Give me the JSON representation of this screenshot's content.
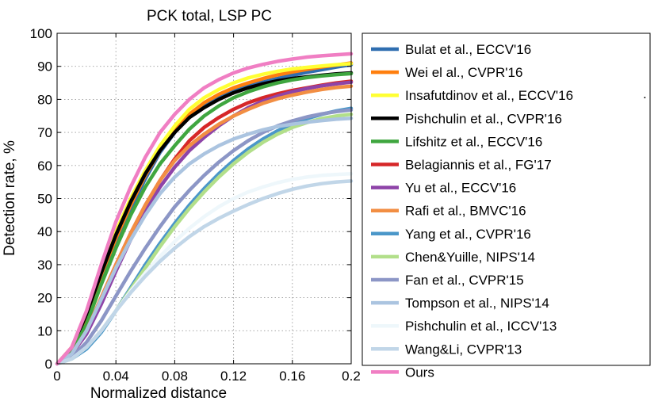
{
  "chart_data": {
    "type": "line",
    "title": "PCK total, LSP PC",
    "xlabel": "Normalized distance",
    "ylabel": "Detection rate, %",
    "xlim": [
      0,
      0.2
    ],
    "ylim": [
      0,
      100
    ],
    "xticks": [
      0,
      0.04,
      0.08,
      0.12,
      0.16,
      0.2
    ],
    "xtick_labels": [
      "0",
      "0.04",
      "0.08",
      "0.12",
      "0.16",
      "0.2"
    ],
    "yticks": [
      0,
      10,
      20,
      30,
      40,
      50,
      60,
      70,
      80,
      90,
      100
    ],
    "ytick_labels": [
      "0",
      "10",
      "20",
      "30",
      "40",
      "50",
      "60",
      "70",
      "80",
      "90",
      "100"
    ],
    "grid": true,
    "legend_position": "outside-right",
    "legend_stray_mark": ".",
    "x": [
      0,
      0.01,
      0.02,
      0.03,
      0.04,
      0.05,
      0.06,
      0.07,
      0.08,
      0.09,
      0.1,
      0.11,
      0.12,
      0.13,
      0.14,
      0.15,
      0.16,
      0.17,
      0.18,
      0.19,
      0.2
    ],
    "series": [
      {
        "name": "Bulat et al., ECCV'16",
        "color": "#2f6eb0",
        "values": [
          0,
          4,
          13,
          26,
          37,
          47,
          56,
          64,
          70,
          75,
          78,
          80.5,
          82.5,
          84,
          85.2,
          86.3,
          87.3,
          88.2,
          89,
          89.8,
          90.5
        ]
      },
      {
        "name": "Wei el al., CVPR'16",
        "color": "#ff7f0e",
        "values": [
          0,
          4,
          14,
          27,
          38,
          48,
          57,
          64.5,
          70.5,
          75.5,
          79,
          81.5,
          83.5,
          85,
          86.3,
          87.4,
          88.3,
          89.1,
          89.8,
          90.4,
          91
        ]
      },
      {
        "name": "Insafutdinov et al., ECCV'16",
        "color": "#ffff33",
        "values": [
          0,
          5,
          15,
          28,
          40,
          50,
          58.5,
          66,
          72,
          77,
          80.5,
          83,
          85,
          86.5,
          87.6,
          88.5,
          89.2,
          89.7,
          90.1,
          90.5,
          90.8
        ]
      },
      {
        "name": "Pishchulin et al., CVPR'16",
        "color": "#000000",
        "values": [
          0,
          4.5,
          15,
          27.5,
          39,
          49,
          57.5,
          64.5,
          70,
          74.5,
          77.5,
          80,
          82,
          83.5,
          84.7,
          85.6,
          86.3,
          86.8,
          87.3,
          87.7,
          88
        ]
      },
      {
        "name": "Lifshitz et al., ECCV'16",
        "color": "#3fa63f",
        "values": [
          0,
          3.5,
          12,
          24,
          35,
          45,
          53.5,
          60.5,
          66,
          71,
          75,
          78,
          80.5,
          82.3,
          83.8,
          85,
          85.9,
          86.6,
          87.1,
          87.5,
          87.8
        ]
      },
      {
        "name": "Belagiannis et al., FG'17",
        "color": "#d62728",
        "values": [
          0,
          3,
          10,
          20,
          30,
          39.5,
          48,
          55.5,
          62,
          67.5,
          71.5,
          74.5,
          77,
          79,
          80.5,
          81.7,
          82.7,
          83.5,
          84.3,
          85,
          85.5
        ]
      },
      {
        "name": "Yu et al., ECCV'16",
        "color": "#8e44a8",
        "values": [
          0,
          3,
          9,
          18,
          28,
          37.5,
          46,
          53.5,
          59.5,
          64.5,
          68.5,
          72,
          75,
          77.5,
          79.5,
          81,
          82.3,
          83.3,
          84.1,
          84.7,
          85.2
        ]
      },
      {
        "name": "Rafi et al., BMVC'16",
        "color": "#f28e43",
        "values": [
          0,
          3,
          10,
          20,
          30,
          39.5,
          48,
          55.5,
          61.5,
          66,
          69.5,
          72.5,
          75,
          77,
          78.8,
          80.2,
          81.3,
          82.2,
          83,
          83.6,
          84
        ]
      },
      {
        "name": "Yang et al., CVPR'16",
        "color": "#4b97c9",
        "values": [
          0,
          1.5,
          4.5,
          9.5,
          16,
          23,
          30,
          36.5,
          42.5,
          48,
          53,
          57.5,
          61.5,
          65,
          68,
          70.5,
          72.5,
          74.2,
          75.5,
          76.5,
          77.3
        ]
      },
      {
        "name": "Chen&Yuille, NIPS'14",
        "color": "#b2df8a",
        "values": [
          0,
          1.5,
          5,
          10,
          16,
          22.5,
          29,
          35.5,
          41.5,
          47,
          52,
          56.5,
          60.5,
          64,
          67,
          69.5,
          71.5,
          73,
          74.2,
          75,
          75.5
        ]
      },
      {
        "name": "Fan et al., CVPR'15",
        "color": "#8c96c6",
        "values": [
          0,
          2,
          6.5,
          13,
          20.5,
          28,
          35,
          41.5,
          47.5,
          52.5,
          57,
          61,
          64.5,
          67.5,
          70,
          72,
          73.5,
          74.7,
          75.6,
          76.3,
          76.8
        ]
      },
      {
        "name": "Tompson et al., NIPS'14",
        "color": "#abc4e0",
        "values": [
          0,
          3,
          10,
          19.5,
          29,
          37.5,
          45,
          51.5,
          56.5,
          60.5,
          63.5,
          66,
          68,
          69.5,
          70.8,
          71.8,
          72.5,
          73.1,
          73.6,
          74,
          74.3
        ]
      },
      {
        "name": "Pishchulin et al., ICCV'13",
        "color": "#eef7fb",
        "values": [
          0,
          1.5,
          5,
          10,
          16,
          22,
          27.5,
          32.5,
          37,
          41,
          44.5,
          47.5,
          50,
          52,
          53.5,
          54.8,
          55.8,
          56.5,
          57,
          57.3,
          57.5
        ]
      },
      {
        "name": "Wang&Li, CVPR'13",
        "color": "#c1d6e8",
        "values": [
          0,
          1.5,
          5,
          10,
          16,
          21.5,
          26.5,
          31,
          35,
          38.5,
          41.5,
          44,
          46.2,
          48.2,
          50,
          51.5,
          52.8,
          53.8,
          54.5,
          55,
          55.3
        ]
      },
      {
        "name": "Ours",
        "color": "#f07ec3",
        "values": [
          0,
          5,
          16,
          30,
          43,
          53.5,
          62.5,
          70,
          75.5,
          80,
          83.5,
          86,
          88,
          89.5,
          90.6,
          91.5,
          92.2,
          92.8,
          93.2,
          93.5,
          93.8
        ]
      }
    ]
  }
}
